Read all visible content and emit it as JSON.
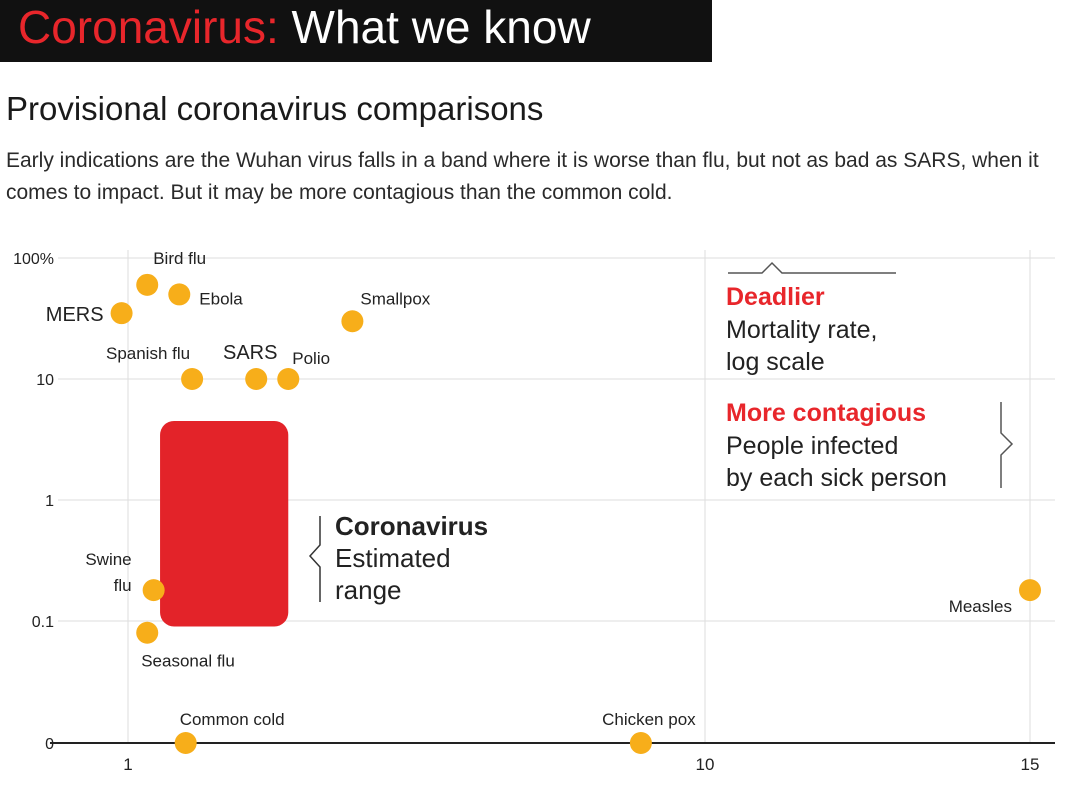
{
  "banner": {
    "title_red": "Coronavirus:",
    "title_white": " What we know"
  },
  "headline": "Provisional coronavirus comparisons",
  "dek": "Early indications are the Wuhan virus falls in a band where it is worse than flu, but not as bad as SARS, when it comes to impact. But it may be more contagious than the common cold.",
  "colors": {
    "point": "#f7ae1a",
    "range": "#e32329",
    "accent": "#e8262b",
    "grid": "#dddddd"
  },
  "chart_data": {
    "type": "scatter",
    "xlabel": "People infected by each sick person",
    "ylabel": "Mortality rate, log scale",
    "x_ticks": [
      "1",
      "10",
      "15"
    ],
    "y_ticks": [
      "100%",
      "10",
      "1",
      "0.1",
      "0"
    ],
    "points": [
      {
        "name": "MERS",
        "x": 0.9,
        "y": 35
      },
      {
        "name": "Bird flu",
        "x": 1.3,
        "y": 60
      },
      {
        "name": "Ebola",
        "x": 1.8,
        "y": 50
      },
      {
        "name": "Smallpox",
        "x": 4.5,
        "y": 30
      },
      {
        "name": "Spanish flu",
        "x": 2.0,
        "y": 10
      },
      {
        "name": "SARS",
        "x": 3.0,
        "y": 10
      },
      {
        "name": "Polio",
        "x": 3.5,
        "y": 10
      },
      {
        "name": "Swine flu",
        "x": 1.4,
        "y": 0.18
      },
      {
        "name": "Seasonal flu",
        "x": 1.3,
        "y": 0.08
      },
      {
        "name": "Measles",
        "x": 15,
        "y": 0.18
      },
      {
        "name": "Common cold",
        "x": 1.9,
        "y": 0
      },
      {
        "name": "Chicken pox",
        "x": 9.0,
        "y": 0
      }
    ],
    "range": {
      "name": "Coronavirus",
      "label_line1": "Coronavirus",
      "label_line2": "Estimated",
      "label_line3": "range",
      "x_min": 1.5,
      "x_max": 3.5,
      "y_min": 0.09,
      "y_max": 4.5
    },
    "legend": {
      "deadlier_title": "Deadlier",
      "deadlier_line1": "Mortality rate,",
      "deadlier_line2": "log scale",
      "contagious_title": "More contagious",
      "contagious_line1": "People infected",
      "contagious_line2": "by each sick person"
    },
    "grid": true
  }
}
